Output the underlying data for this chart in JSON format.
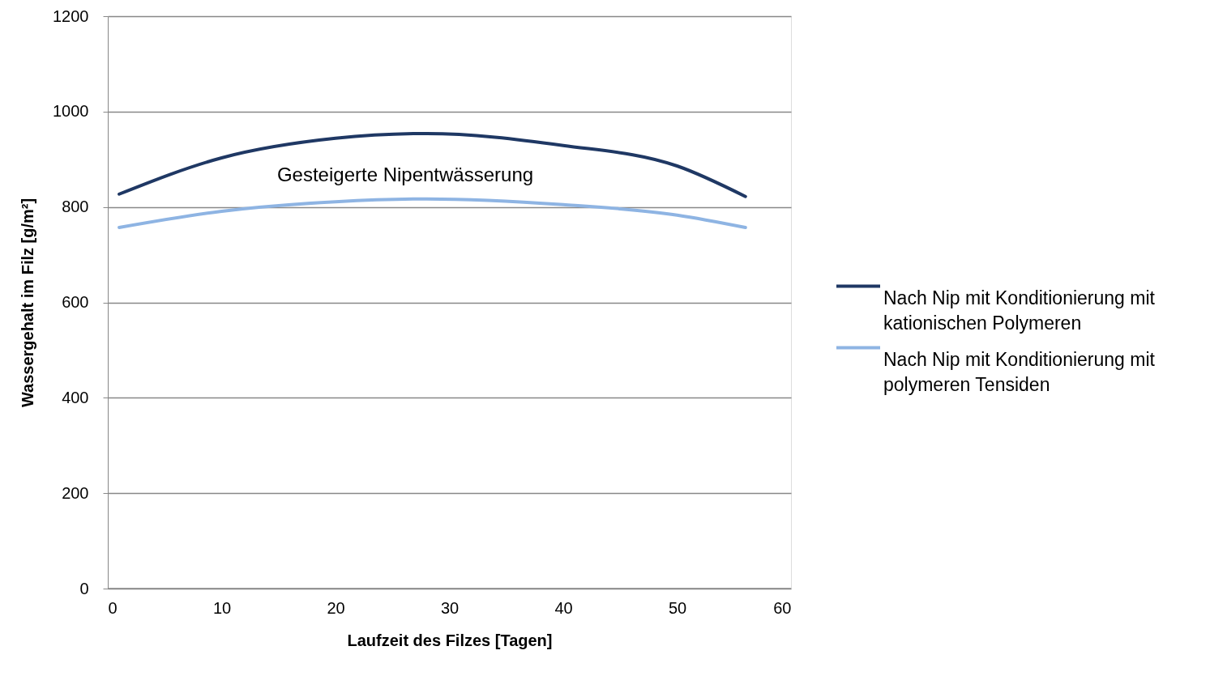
{
  "chart_data": {
    "type": "line",
    "xlabel": "Laufzeit des Filzes [Tagen]",
    "ylabel": "Wassergehalt im Filz  [g/m²]",
    "xlim": [
      0,
      60
    ],
    "xticks": [
      0,
      10,
      20,
      30,
      40,
      50,
      60
    ],
    "ylim": [
      0,
      1200
    ],
    "yticks": [
      0,
      200,
      400,
      600,
      800,
      1000,
      1200
    ],
    "grid": "y",
    "legend": "right",
    "marker": "none",
    "line_style": "solid",
    "x": [
      1,
      10,
      20,
      28,
      40,
      50,
      56
    ],
    "series": [
      {
        "name": "Nach Nip mit Konditionierung mit kationischen Polymeren",
        "color": "#1f3864",
        "values": [
          827,
          903,
          944,
          954,
          929,
          886,
          822
        ]
      },
      {
        "name": "Nach Nip mit Konditionierung mit polymeren Tensiden",
        "color": "#8eb4e3",
        "values": [
          757,
          791,
          811,
          817,
          805,
          783,
          757
        ]
      }
    ],
    "annotations": [
      "Gesteigerte Nipentwässerung"
    ]
  }
}
